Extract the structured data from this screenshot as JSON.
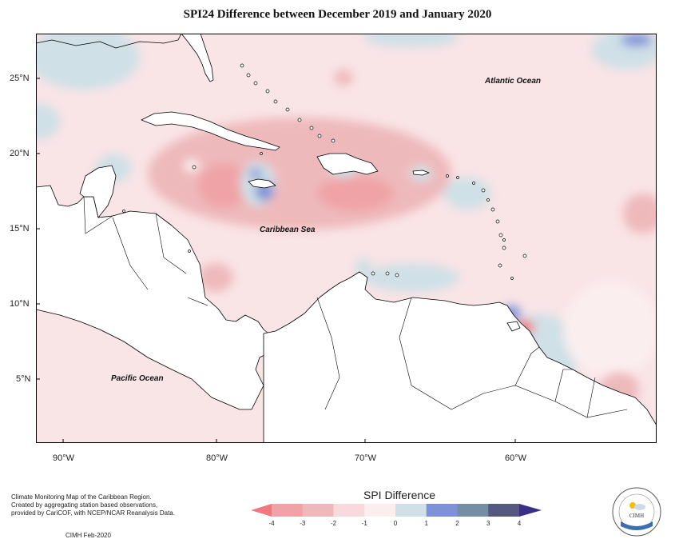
{
  "title": "SPI24 Difference between December 2019 and January 2020",
  "map": {
    "labels": {
      "atlantic": "Atlantic Ocean",
      "caribbean": "Caribbean Sea",
      "pacific": "Pacific Ocean"
    },
    "lat_ticks": [
      "25°N",
      "20°N",
      "15°N",
      "10°N",
      "5°N"
    ],
    "lon_ticks": [
      "90°W",
      "80°W",
      "70°W",
      "60°W"
    ],
    "land_color": "#ffffff",
    "base_color": "#f9e4e6"
  },
  "legend": {
    "title": "SPI Difference",
    "ticks": [
      "-4",
      "-3",
      "-2",
      "-1",
      "0",
      "1",
      "2",
      "3",
      "4"
    ],
    "colors": [
      "#f0787e",
      "#f0a3a6",
      "#eeb9bb",
      "#f8dadd",
      "#fbeeef",
      "#cfe0e7",
      "#7f92d8",
      "#748ea4",
      "#55597f",
      "#3a2f86"
    ]
  },
  "credits": {
    "line1": "Climate Monitoring Map of the Caribbean Region.",
    "line2": "Created by aggregating station based observations,",
    "line3": "provided by CariCOF, with NCEP/NCAR Reanalysis Data.",
    "stamp": "CIMH Feb-2020"
  },
  "logo": {
    "text": "CIMH"
  }
}
